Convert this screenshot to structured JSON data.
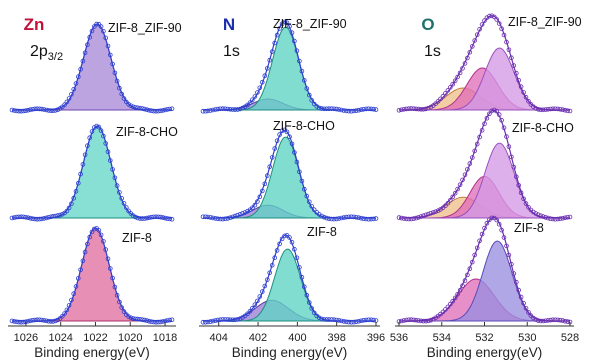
{
  "figure": {
    "panels": [
      {
        "element": "Zn",
        "orbital_main": "2p",
        "orbital_sub": "3/2",
        "element_color": "#c0143c"
      },
      {
        "element": "N",
        "orbital_main": "1s",
        "orbital_sub": "",
        "element_color": "#1c2fb0"
      },
      {
        "element": "O",
        "orbital_main": "1s",
        "orbital_sub": "",
        "element_color": "#1f6f6a"
      }
    ],
    "x_label": "Binding energy(eV)"
  },
  "chart_data": [
    {
      "type": "line",
      "element": "Zn",
      "orbital": "2p3/2",
      "xlabel": "Binding energy(eV)",
      "xlim": [
        1026.8,
        1017.6
      ],
      "x_reversed": true,
      "xticks": [
        1026,
        1024,
        1022,
        1020,
        1018
      ],
      "data_color": "#2f3fd0",
      "rows": [
        {
          "sample": "ZIF-8_ZIF-90",
          "height": 1.0,
          "components": [
            {
              "center": 1021.9,
              "fwhm": 1.85,
              "amp": 1.0,
              "fill": "#a98bd8",
              "stroke": "#6a43b0"
            }
          ]
        },
        {
          "sample": "ZIF-8-CHO",
          "height": 1.0,
          "components": [
            {
              "center": 1021.9,
              "fwhm": 1.85,
              "amp": 1.0,
              "fill": "#66d6c8",
              "stroke": "#1f8e80"
            }
          ]
        },
        {
          "sample": "ZIF-8",
          "height": 1.0,
          "components": [
            {
              "center": 1022.0,
              "fwhm": 1.85,
              "amp": 1.0,
              "fill": "#e06fa0",
              "stroke": "#a82f68"
            }
          ]
        }
      ]
    },
    {
      "type": "line",
      "element": "N",
      "orbital": "1s",
      "xlabel": "Binding energy(eV)",
      "xlim": [
        404.8,
        396.0
      ],
      "x_reversed": true,
      "xticks": [
        404,
        402,
        400,
        398,
        396
      ],
      "data_color": "#2f3fd0",
      "rows": [
        {
          "sample": "ZIF-8_ZIF-90",
          "height": 1.0,
          "components": [
            {
              "center": 401.5,
              "fwhm": 1.8,
              "amp": 0.12,
              "fill": "#9b7ed4",
              "stroke": "#5a3aa0"
            },
            {
              "center": 400.6,
              "fwhm": 1.55,
              "amp": 0.9,
              "fill": "#5fd3c4",
              "stroke": "#1f8e80"
            }
          ]
        },
        {
          "sample": "ZIF-8-CHO",
          "height": 1.0,
          "components": [
            {
              "center": 401.5,
              "fwhm": 1.8,
              "amp": 0.14,
              "fill": "#9b7ed4",
              "stroke": "#5a3aa0"
            },
            {
              "center": 400.6,
              "fwhm": 1.55,
              "amp": 0.88,
              "fill": "#5fd3c4",
              "stroke": "#1f8e80"
            }
          ]
        },
        {
          "sample": "ZIF-8",
          "height": 1.0,
          "components": [
            {
              "center": 401.3,
              "fwhm": 2.0,
              "amp": 0.23,
              "fill": "#9b7ed4",
              "stroke": "#5a3aa0"
            },
            {
              "center": 400.5,
              "fwhm": 1.55,
              "amp": 0.8,
              "fill": "#5fd3c4",
              "stroke": "#1f8e80"
            }
          ]
        }
      ]
    },
    {
      "type": "line",
      "element": "O",
      "orbital": "1s",
      "xlabel": "Binding energy(eV)",
      "xlim": [
        536.0,
        528.0
      ],
      "x_reversed": true,
      "xticks": [
        536,
        534,
        532,
        530,
        528
      ],
      "data_color": "#6a2fb0",
      "rows": [
        {
          "sample": "ZIF-8_ZIF-90",
          "height": 1.0,
          "components": [
            {
              "center": 533.0,
              "fwhm": 1.9,
              "amp": 0.22,
              "fill": "#f0c08a",
              "stroke": "#c08040"
            },
            {
              "center": 532.1,
              "fwhm": 1.7,
              "amp": 0.42,
              "fill": "#e070b8",
              "stroke": "#b0308a"
            },
            {
              "center": 531.3,
              "fwhm": 1.6,
              "amp": 0.62,
              "fill": "#d49ae6",
              "stroke": "#9a50c0"
            }
          ]
        },
        {
          "sample": "ZIF-8-CHO",
          "height": 1.0,
          "components": [
            {
              "center": 533.0,
              "fwhm": 1.9,
              "amp": 0.2,
              "fill": "#f0c08a",
              "stroke": "#c08040"
            },
            {
              "center": 532.0,
              "fwhm": 1.6,
              "amp": 0.4,
              "fill": "#e070b8",
              "stroke": "#b0308a"
            },
            {
              "center": 531.3,
              "fwhm": 1.6,
              "amp": 0.72,
              "fill": "#d49ae6",
              "stroke": "#9a50c0"
            }
          ]
        },
        {
          "sample": "ZIF-8",
          "height": 1.0,
          "components": [
            {
              "center": 532.4,
              "fwhm": 2.0,
              "amp": 0.42,
              "fill": "#e070b8",
              "stroke": "#b0308a"
            },
            {
              "center": 531.4,
              "fwhm": 1.6,
              "amp": 0.8,
              "fill": "#9a8ee0",
              "stroke": "#5a4ab8"
            }
          ]
        }
      ]
    }
  ]
}
